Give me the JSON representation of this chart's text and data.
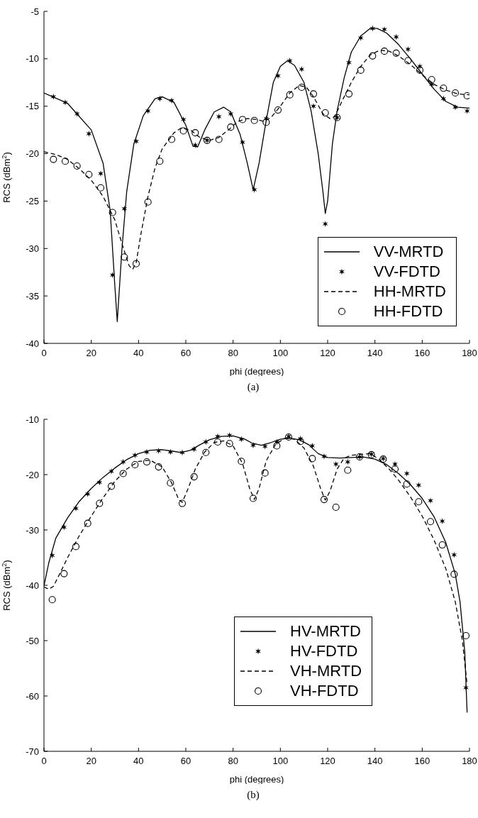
{
  "chart_data": [
    {
      "type": "line",
      "xlabel": "phi (degrees)",
      "ylabel": "RCS (dBm$^{2}$)",
      "xlim": [
        0,
        180
      ],
      "xticks": [
        0,
        20,
        40,
        60,
        80,
        100,
        120,
        140,
        160,
        180
      ],
      "ylim": [
        -40,
        -5
      ],
      "yticks": [
        -40,
        -35,
        -30,
        -25,
        -20,
        -15,
        -10,
        -5
      ],
      "legend": "bottom right",
      "annotations": [
        "(a)"
      ],
      "series": [
        {
          "name": "VV-MRTD",
          "type": "line",
          "color": "#000000",
          "marker": "none",
          "line_style": "solid",
          "x": [
            0,
            10,
            20,
            25,
            28,
            30,
            31,
            33,
            35,
            38,
            42,
            47,
            50,
            55,
            60,
            63,
            65,
            68,
            72,
            76,
            79,
            83,
            86,
            88.5,
            91,
            94,
            97,
            100,
            103,
            106,
            110,
            113,
            116,
            118,
            119,
            120,
            122,
            124,
            127,
            130,
            134,
            138,
            141,
            145,
            150,
            155,
            160,
            165,
            170,
            175,
            180
          ],
          "values": [
            -13.6,
            -14.7,
            -17.5,
            -21,
            -26,
            -34,
            -37.7,
            -30,
            -24,
            -19,
            -16,
            -14.2,
            -14,
            -14.6,
            -17,
            -19.2,
            -19.3,
            -17.5,
            -15.6,
            -15.1,
            -15.6,
            -18,
            -21,
            -23.8,
            -21,
            -16.5,
            -12.5,
            -10.8,
            -10.2,
            -10.7,
            -12.5,
            -15.5,
            -20,
            -24,
            -26.3,
            -25,
            -19,
            -15.5,
            -12,
            -9.3,
            -7.6,
            -6.8,
            -6.8,
            -7.3,
            -8.5,
            -10,
            -11.6,
            -13.2,
            -14.5,
            -15.1,
            -15.2
          ]
        },
        {
          "name": "VV-FDTD",
          "type": "scatter",
          "color": "#000000",
          "marker": "cross",
          "x": [
            4,
            9,
            14,
            19,
            24,
            29,
            34,
            39,
            44,
            49,
            54,
            59,
            64,
            69,
            74,
            79,
            84,
            89,
            94,
            99,
            104,
            109,
            114,
            119,
            124,
            129,
            134,
            139,
            144,
            149,
            154,
            159,
            164,
            169,
            174,
            179
          ],
          "values": [
            -14,
            -14.6,
            -15.8,
            -17.9,
            -22.1,
            -32.8,
            -25.8,
            -18.7,
            -15.5,
            -14.2,
            -14.4,
            -16.4,
            -19.1,
            -18.6,
            -16.1,
            -15.8,
            -18.8,
            -23.8,
            -16.3,
            -11.8,
            -10.2,
            -11.1,
            -15,
            -27.4,
            -16.2,
            -10.4,
            -7.8,
            -6.8,
            -6.9,
            -7.7,
            -9,
            -10.8,
            -12.7,
            -14.2,
            -15.1,
            -15.5
          ]
        },
        {
          "name": "HH-MRTD",
          "type": "line",
          "color": "#000000",
          "marker": "none",
          "line_style": "dashed",
          "x": [
            0,
            5,
            10,
            15,
            20,
            25,
            30,
            33,
            36,
            37.5,
            39,
            41,
            44,
            47,
            50,
            55,
            58,
            62,
            66,
            70,
            74,
            78,
            82,
            86,
            90,
            93,
            96,
            100,
            104,
            108,
            111,
            114,
            118,
            121,
            123,
            126,
            130,
            134,
            138,
            142,
            146,
            150,
            155,
            160,
            165,
            170,
            175,
            180
          ],
          "values": [
            -19.8,
            -20.1,
            -20.6,
            -21.6,
            -22.8,
            -24.5,
            -27,
            -29.5,
            -31.8,
            -32.2,
            -31.5,
            -28.5,
            -24.5,
            -21.5,
            -19.5,
            -17.8,
            -17.3,
            -17.5,
            -18.3,
            -18.6,
            -18.3,
            -17.5,
            -16.6,
            -16.3,
            -16.4,
            -16.6,
            -16.2,
            -15,
            -13.6,
            -12.8,
            -13,
            -14,
            -15.8,
            -16.3,
            -16.1,
            -14.5,
            -12.5,
            -10.8,
            -9.6,
            -9.1,
            -9.2,
            -9.7,
            -10.6,
            -11.7,
            -12.7,
            -13.3,
            -13.7,
            -13.8
          ]
        },
        {
          "name": "HH-FDTD",
          "type": "scatter",
          "color": "#000000",
          "marker": "circle",
          "x": [
            4,
            9,
            14,
            19,
            24,
            29,
            34,
            39,
            44,
            49,
            54,
            59,
            64,
            69,
            74,
            79,
            84,
            89,
            94,
            99,
            104,
            109,
            114,
            119,
            124,
            129,
            134,
            139,
            144,
            149,
            154,
            159,
            164,
            169,
            174,
            179
          ],
          "values": [
            -20.6,
            -20.8,
            -21.3,
            -22.2,
            -23.6,
            -26.2,
            -30.9,
            -31.6,
            -25.1,
            -20.8,
            -18.5,
            -17.6,
            -17.8,
            -18.6,
            -18.5,
            -17.2,
            -16.4,
            -16.5,
            -16.7,
            -15.4,
            -13.8,
            -13,
            -13.7,
            -15.7,
            -16.2,
            -13.7,
            -11.2,
            -9.7,
            -9.2,
            -9.4,
            -10.2,
            -11.2,
            -12.2,
            -13.1,
            -13.6,
            -13.9
          ]
        }
      ]
    },
    {
      "type": "line",
      "xlabel": "phi (degrees)",
      "ylabel": "RCS (dBm$^{2}$)",
      "xlim": [
        0,
        180
      ],
      "xticks": [
        0,
        20,
        40,
        60,
        80,
        100,
        120,
        140,
        160,
        180
      ],
      "ylim": [
        -70,
        -10
      ],
      "yticks": [
        -70,
        -60,
        -50,
        -40,
        -30,
        -20,
        -10
      ],
      "legend": "bottom",
      "annotations": [
        "(b)"
      ],
      "series": [
        {
          "name": "HV-MRTD",
          "type": "line",
          "color": "#000000",
          "marker": "none",
          "line_style": "solid",
          "x": [
            0,
            2,
            5,
            10,
            15,
            20,
            25,
            30,
            35,
            40,
            45,
            50,
            55,
            58,
            62,
            66,
            70,
            75,
            80,
            85,
            88,
            92,
            96,
            100,
            104,
            108,
            112,
            116,
            120,
            125,
            130,
            135,
            140,
            145,
            150,
            155,
            160,
            165,
            170,
            174,
            176,
            178,
            179
          ],
          "values": [
            -40.1,
            -36,
            -31.5,
            -27.8,
            -24.8,
            -22.5,
            -20.5,
            -18.8,
            -17.3,
            -16.2,
            -15.6,
            -15.5,
            -15.8,
            -16,
            -15.6,
            -14.6,
            -13.7,
            -13.1,
            -13,
            -13.6,
            -14.3,
            -14.7,
            -14.2,
            -13.6,
            -13.4,
            -13.7,
            -14.6,
            -16.2,
            -16.9,
            -17,
            -16.9,
            -16.8,
            -17.2,
            -18.2,
            -19.8,
            -21.8,
            -24.3,
            -27.6,
            -32.3,
            -38,
            -43,
            -52,
            -63
          ]
        },
        {
          "name": "HV-FDTD",
          "type": "scatter",
          "color": "#000000",
          "marker": "cross",
          "x": [
            3.5,
            8.5,
            13.5,
            18.5,
            23.5,
            28.5,
            33.5,
            38.5,
            43.5,
            48.5,
            53.5,
            58.5,
            63.5,
            68.5,
            73.5,
            78.5,
            83.5,
            88.5,
            93.5,
            98.5,
            103.5,
            108.5,
            113.5,
            118.5,
            123.5,
            128.5,
            133.5,
            138.5,
            143.5,
            148.5,
            153.5,
            158.5,
            163.5,
            168.5,
            173.5,
            178.5
          ],
          "values": [
            -34.6,
            -29.5,
            -26.1,
            -23.5,
            -21.4,
            -19.4,
            -17.7,
            -16.5,
            -15.9,
            -15.7,
            -15.9,
            -16,
            -15.4,
            -14.1,
            -13.1,
            -12.9,
            -13.6,
            -14.7,
            -14.9,
            -14.1,
            -13.1,
            -13.5,
            -14.8,
            -16.7,
            -18.1,
            -17.7,
            -16.8,
            -16.3,
            -17.1,
            -18.1,
            -19.8,
            -21.9,
            -24.7,
            -28.4,
            -34.5,
            -58.5
          ]
        },
        {
          "name": "VH-MRTD",
          "type": "line",
          "color": "#000000",
          "marker": "none",
          "line_style": "dashed",
          "x": [
            0,
            2,
            4,
            6,
            10,
            15,
            20,
            25,
            30,
            35,
            40,
            45,
            50,
            54,
            57,
            58.5,
            61,
            64,
            68,
            72,
            76,
            80,
            84,
            87,
            89,
            91,
            94,
            98,
            102,
            106,
            110,
            114,
            117,
            119,
            121,
            124,
            127,
            130,
            135,
            138,
            142,
            146,
            150,
            155,
            160,
            165,
            170,
            174,
            177,
            179
          ],
          "values": [
            -40.3,
            -40.7,
            -40.2,
            -38.5,
            -35,
            -31,
            -27.5,
            -24.2,
            -21.2,
            -19,
            -17.6,
            -17.4,
            -18.6,
            -21.5,
            -24.5,
            -25,
            -22.5,
            -19,
            -15.9,
            -14.2,
            -13.9,
            -14.8,
            -18,
            -22.5,
            -24.5,
            -22.5,
            -17.5,
            -14.5,
            -13.4,
            -13.6,
            -15.2,
            -18.5,
            -22.5,
            -24.6,
            -23,
            -19,
            -17,
            -16.5,
            -16.3,
            -16.2,
            -17.3,
            -19,
            -21,
            -24,
            -27.5,
            -31.8,
            -37,
            -43,
            -50,
            -58
          ]
        },
        {
          "name": "VH-FDTD",
          "type": "scatter",
          "color": "#000000",
          "marker": "circle",
          "x": [
            3.5,
            8.5,
            13.5,
            18.5,
            23.5,
            28.5,
            33.5,
            38.5,
            43.5,
            48.5,
            53.5,
            58.5,
            63.5,
            68.5,
            73.5,
            78.5,
            83.5,
            88.5,
            93.5,
            98.5,
            103.5,
            108.5,
            113.5,
            118.5,
            123.5,
            128.5,
            133.5,
            138.5,
            143.5,
            148.5,
            153.5,
            158.5,
            163.5,
            168.5,
            173.5,
            178.5
          ],
          "values": [
            -42.6,
            -37.9,
            -33,
            -28.8,
            -25.2,
            -22.1,
            -19.8,
            -18.2,
            -17.7,
            -18.6,
            -21.5,
            -25.2,
            -20.4,
            -16,
            -14.1,
            -14.4,
            -17.6,
            -24.3,
            -19.7,
            -14.8,
            -13.2,
            -14,
            -17.1,
            -24.5,
            -25.9,
            -19.2,
            -16.8,
            -16.4,
            -17.2,
            -19,
            -21.7,
            -24.9,
            -28.5,
            -32.7,
            -38,
            -49.1
          ]
        }
      ]
    }
  ]
}
